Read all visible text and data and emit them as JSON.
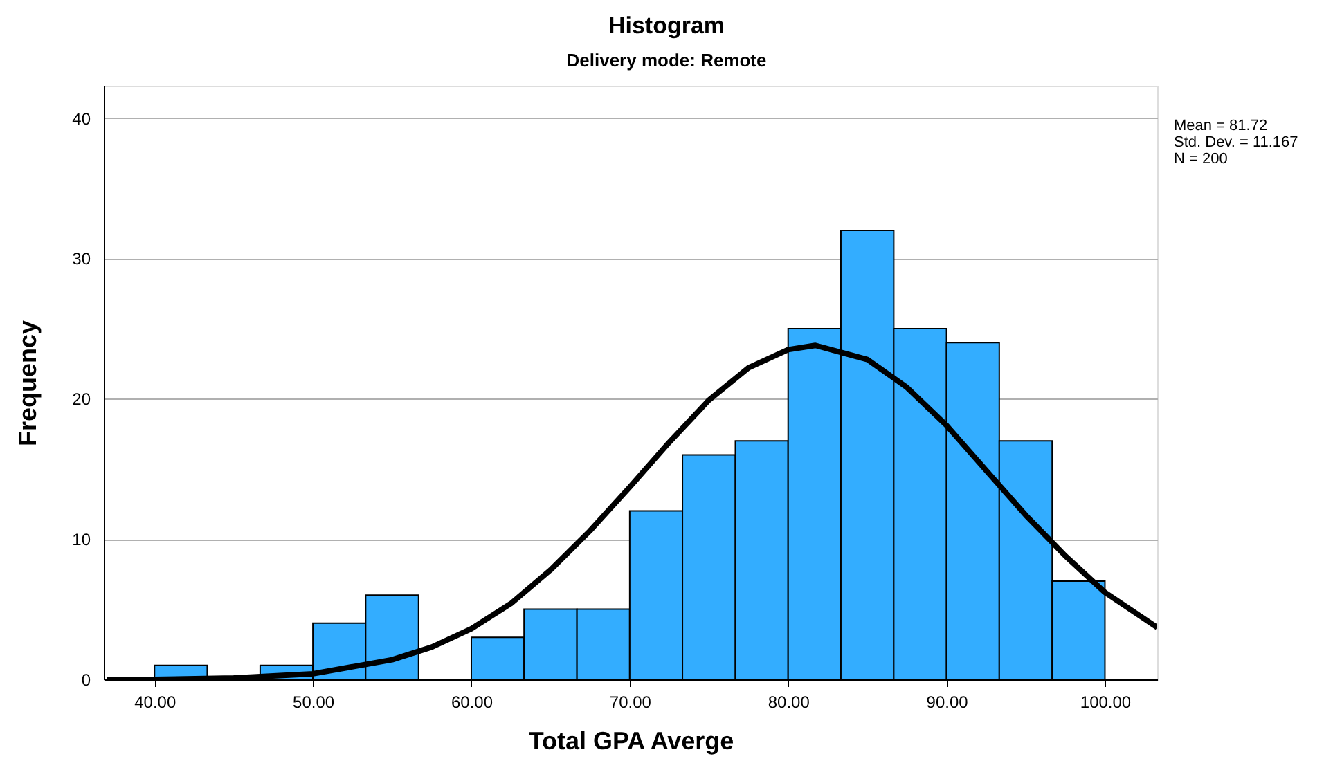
{
  "chart_data": {
    "type": "histogram",
    "title": "Histogram",
    "subtitle": "Delivery mode: Remote",
    "xlabel": "Total GPA Averge",
    "ylabel": "Frequency",
    "bins": [
      40,
      43.33,
      46.67,
      50,
      53.33,
      56.67,
      60,
      63.33,
      66.67,
      70,
      73.33,
      76.67,
      80,
      83.33,
      86.67,
      90,
      93.33,
      96.67,
      100
    ],
    "values": [
      1,
      0,
      1,
      4,
      6,
      0,
      3,
      5,
      5,
      12,
      16,
      17,
      25,
      32,
      25,
      24,
      17,
      7
    ],
    "color": "#33adff",
    "series": [
      {
        "type": "line",
        "color": "#000000",
        "x": [
          37,
          40,
          45,
          50,
          55,
          57.5,
          60,
          62.5,
          65,
          67.5,
          70,
          72.5,
          75,
          77.5,
          80,
          81.72,
          85,
          87.5,
          90,
          92.5,
          95,
          97.5,
          100,
          103.3
        ],
        "values": [
          0.0,
          0.0,
          0.1,
          0.4,
          1.4,
          2.3,
          3.6,
          5.4,
          7.8,
          10.6,
          13.7,
          16.9,
          19.9,
          22.2,
          23.5,
          23.8,
          22.8,
          20.8,
          18.1,
          14.9,
          11.7,
          8.8,
          6.2,
          3.7
        ]
      }
    ],
    "xlim": [
      36.8,
      103.3
    ],
    "xticks": [
      {
        "value": 40,
        "label": "40.00"
      },
      {
        "value": 50,
        "label": "50.00"
      },
      {
        "value": 60,
        "label": "60.00"
      },
      {
        "value": 70,
        "label": "70.00"
      },
      {
        "value": 80,
        "label": "80.00"
      },
      {
        "value": 90,
        "label": "90.00"
      },
      {
        "value": 100,
        "label": "100.00"
      }
    ],
    "ylim": [
      0,
      42.3
    ],
    "yticks": [
      0,
      10,
      20,
      30,
      40
    ],
    "grid": "y",
    "annotations": [
      "Mean = 81.72",
      "Std. Dev. =   11.167",
      "N = 200"
    ]
  }
}
